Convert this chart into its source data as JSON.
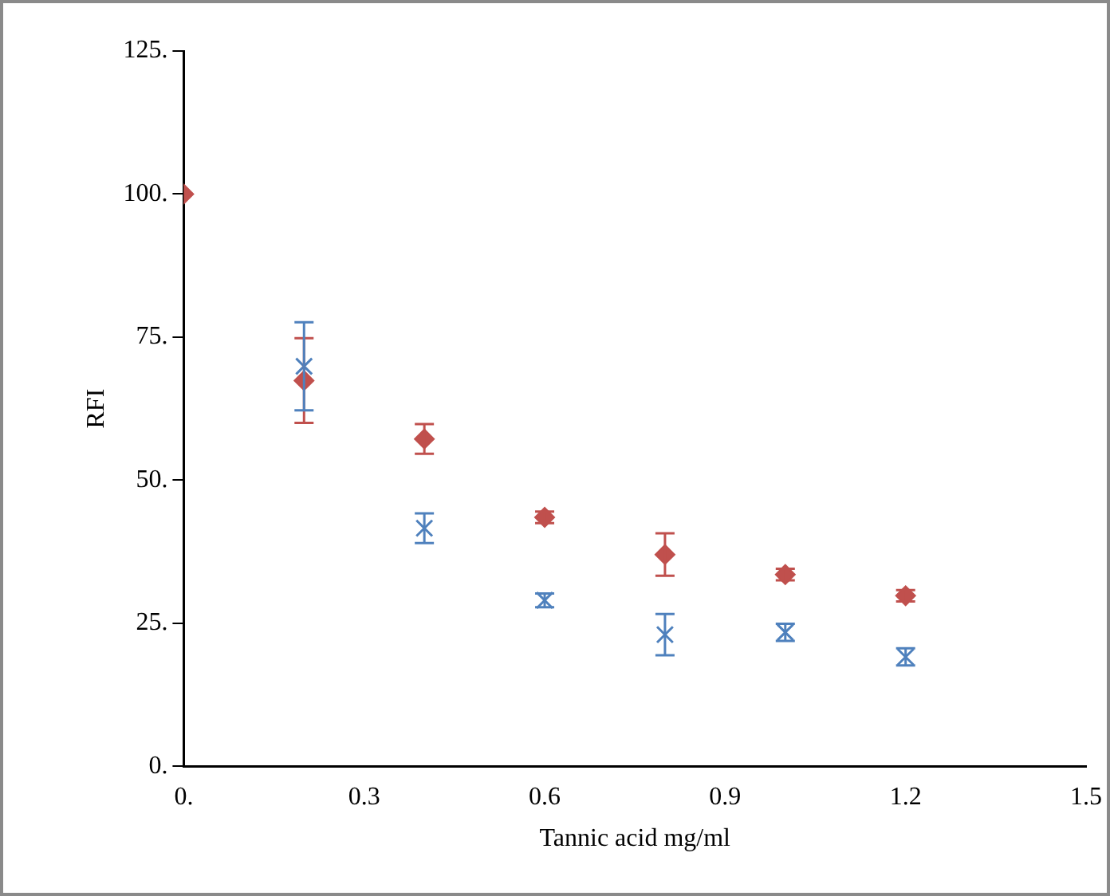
{
  "chart_data": {
    "type": "scatter",
    "xlabel": "Tannic acid mg/ml",
    "ylabel": "RFI",
    "x": [
      0,
      0.2,
      0.4,
      0.6,
      0.8,
      1.0,
      1.2
    ],
    "series": [
      {
        "color": "#c0504d",
        "marker": "diamond",
        "values": [
          100,
          67.4,
          57.2,
          43.5,
          37.0,
          33.5,
          29.8
        ],
        "errors": [
          null,
          7.4,
          2.6,
          1,
          3.7,
          1,
          1
        ]
      },
      {
        "color": "#4f81bd",
        "marker": "cross",
        "values": [
          null,
          69.9,
          41.6,
          29,
          23.0,
          23.4,
          19.1
        ],
        "errors": [
          null,
          7.7,
          2.6,
          1.2,
          3.6,
          1.5,
          1.5
        ]
      }
    ],
    "xlim": [
      0,
      1.5
    ],
    "xticks": [
      {
        "value": 0,
        "label": "0."
      },
      0.3,
      0.6,
      0.9,
      1.2,
      1.5
    ],
    "ylim": [
      0,
      125
    ],
    "yticks": [
      {
        "value": 0,
        "label": "0."
      },
      {
        "value": 25,
        "label": "25."
      },
      {
        "value": 50,
        "label": "50."
      },
      {
        "value": 75,
        "label": "75."
      },
      {
        "value": 100,
        "label": "100."
      },
      {
        "value": 125,
        "label": "125."
      }
    ],
    "grid": false,
    "legend": false
  }
}
